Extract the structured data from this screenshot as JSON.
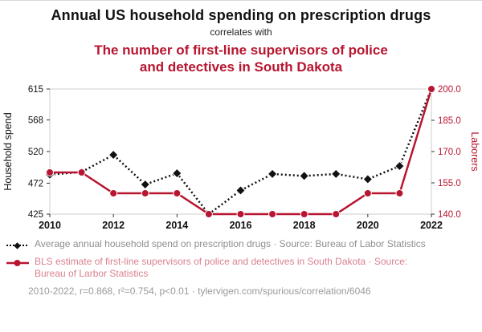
{
  "header": {
    "title": "Annual US household spending on prescription drugs",
    "correlates_with": "correlates with",
    "red_title": "The number of first-line supervisors of police and detectives in South Dakota"
  },
  "colors": {
    "accent_red": "#b81530",
    "series_black": "#111111",
    "legend_gray": "#8f8f8f",
    "frame_gray": "#cccccc"
  },
  "chart_data": {
    "type": "line",
    "x": [
      2010,
      2011,
      2012,
      2013,
      2014,
      2015,
      2016,
      2017,
      2018,
      2019,
      2020,
      2021,
      2022
    ],
    "x_range": [
      2010,
      2022
    ],
    "x_ticks": [
      2010,
      2012,
      2014,
      2016,
      2018,
      2020,
      2022
    ],
    "left_axis": {
      "label": "Household spend",
      "ticks": [
        615,
        568,
        520,
        472,
        425
      ],
      "range": [
        425,
        615
      ]
    },
    "right_axis": {
      "label": "Laborers",
      "ticks": [
        "200.0",
        "185.0",
        "170.0",
        "155.0",
        "140.0"
      ],
      "range": [
        140,
        200
      ]
    },
    "series": [
      {
        "name": "Average annual household spend on prescription drugs",
        "axis": "left",
        "color": "#111111",
        "style": "dotted",
        "marker": "diamond",
        "values": [
          485,
          489,
          515,
          470,
          487,
          425,
          461,
          486,
          483,
          486,
          478,
          498,
          615
        ]
      },
      {
        "name": "BLS estimate of first-line supervisors of police and detectives in South Dakota",
        "axis": "right",
        "color": "#b81530",
        "style": "solid",
        "marker": "circle",
        "values": [
          160,
          160,
          150,
          150,
          150,
          140,
          140,
          140,
          140,
          140,
          150,
          150,
          200
        ]
      }
    ],
    "title": "Annual US household spending on prescription drugs correlates with the number of first-line supervisors of police and detectives in South Dakota",
    "legend_position": "bottom",
    "grid": false
  },
  "legend": {
    "items": [
      {
        "text": "Average annual household spend on prescription drugs · Source: Bureau of Labor Statistics"
      },
      {
        "text": "BLS estimate of first-line supervisors of police and detectives in South Dakota · Source: Bureau of Larbor Statistics"
      }
    ]
  },
  "footer": {
    "text": "2010-2022, r=0.868, r²=0.754, p<0.01 · tylervigen.com/spurious/correlation/6046"
  }
}
